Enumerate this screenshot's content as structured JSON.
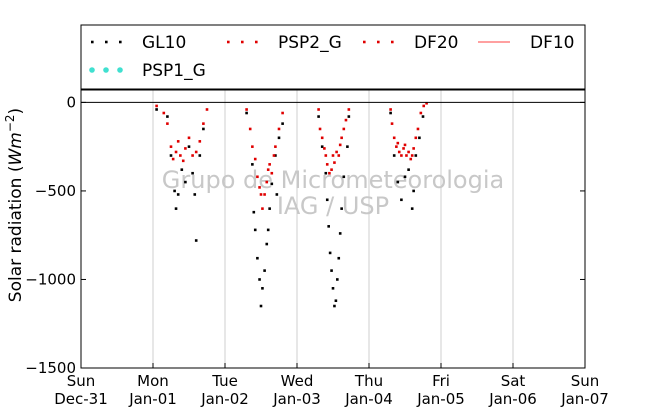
{
  "chart_data": {
    "type": "scatter",
    "ylabel": "Solar radiation",
    "ylabel_unit_base": "W",
    "ylabel_unit_sub": "m",
    "ylabel_unit_exp": "−2",
    "ylim": [
      -1500,
      70
    ],
    "yticks": [
      0,
      -500,
      -1000,
      -1500
    ],
    "ytick_labels": [
      "0",
      "−500",
      "−1000",
      "−1500"
    ],
    "xlim": [
      0,
      7
    ],
    "xticks": [
      {
        "pos": 0,
        "day": "Sun",
        "date": "Dec-31"
      },
      {
        "pos": 1,
        "day": "Mon",
        "date": "Jan-01"
      },
      {
        "pos": 2,
        "day": "Tue",
        "date": "Jan-02"
      },
      {
        "pos": 3,
        "day": "Wed",
        "date": "Jan-03"
      },
      {
        "pos": 4,
        "day": "Thu",
        "date": "Jan-04"
      },
      {
        "pos": 5,
        "day": "Fri",
        "date": "Jan-05"
      },
      {
        "pos": 6,
        "day": "Sat",
        "date": "Jan-06"
      },
      {
        "pos": 7,
        "day": "Sun",
        "date": "Jan-07"
      }
    ],
    "grid": "vertical",
    "zero_line": true,
    "legend_position": "top",
    "watermark": [
      "Grupo de Micrometeorologia",
      "IAG / USP"
    ],
    "series": [
      {
        "name": "GL10",
        "color": "#000000",
        "marker": "dot",
        "points": [
          [
            1.05,
            -40
          ],
          [
            1.2,
            -80
          ],
          [
            1.25,
            -300
          ],
          [
            1.3,
            -500
          ],
          [
            1.32,
            -600
          ],
          [
            1.35,
            -520
          ],
          [
            1.4,
            -380
          ],
          [
            1.45,
            -450
          ],
          [
            1.5,
            -250
          ],
          [
            1.55,
            -400
          ],
          [
            1.58,
            -520
          ],
          [
            1.6,
            -780
          ],
          [
            1.65,
            -300
          ],
          [
            1.7,
            -150
          ],
          [
            2.3,
            -60
          ],
          [
            2.38,
            -350
          ],
          [
            2.4,
            -620
          ],
          [
            2.42,
            -720
          ],
          [
            2.45,
            -880
          ],
          [
            2.48,
            -1000
          ],
          [
            2.5,
            -1150
          ],
          [
            2.52,
            -1050
          ],
          [
            2.55,
            -950
          ],
          [
            2.58,
            -800
          ],
          [
            2.6,
            -720
          ],
          [
            2.62,
            -600
          ],
          [
            2.65,
            -460
          ],
          [
            2.7,
            -300
          ],
          [
            2.72,
            -520
          ],
          [
            2.75,
            -200
          ],
          [
            2.8,
            -120
          ],
          [
            3.3,
            -80
          ],
          [
            3.35,
            -250
          ],
          [
            3.4,
            -400
          ],
          [
            3.42,
            -550
          ],
          [
            3.44,
            -700
          ],
          [
            3.46,
            -850
          ],
          [
            3.48,
            -950
          ],
          [
            3.5,
            -1050
          ],
          [
            3.52,
            -1150
          ],
          [
            3.54,
            -1120
          ],
          [
            3.56,
            -1000
          ],
          [
            3.58,
            -880
          ],
          [
            3.6,
            -740
          ],
          [
            3.62,
            -600
          ],
          [
            3.65,
            -420
          ],
          [
            3.7,
            -250
          ],
          [
            3.72,
            -80
          ],
          [
            4.3,
            -60
          ],
          [
            4.35,
            -300
          ],
          [
            4.4,
            -450
          ],
          [
            4.45,
            -550
          ],
          [
            4.5,
            -420
          ],
          [
            4.55,
            -380
          ],
          [
            4.6,
            -600
          ],
          [
            4.62,
            -500
          ],
          [
            4.65,
            -300
          ],
          [
            4.7,
            -200
          ],
          [
            4.75,
            -80
          ]
        ]
      },
      {
        "name": "PSP2_G",
        "color": "#e00000",
        "marker": "dot",
        "points": [
          [
            1.05,
            -20
          ],
          [
            1.15,
            -60
          ],
          [
            1.2,
            -120
          ],
          [
            1.25,
            -250
          ],
          [
            1.28,
            -320
          ],
          [
            1.32,
            -280
          ],
          [
            1.35,
            -220
          ],
          [
            1.38,
            -300
          ],
          [
            1.42,
            -330
          ],
          [
            1.45,
            -260
          ],
          [
            1.5,
            -200
          ],
          [
            1.55,
            -300
          ],
          [
            1.6,
            -280
          ],
          [
            1.65,
            -220
          ],
          [
            1.7,
            -120
          ],
          [
            1.75,
            -40
          ],
          [
            2.3,
            -40
          ],
          [
            2.35,
            -150
          ],
          [
            2.38,
            -250
          ],
          [
            2.42,
            -320
          ],
          [
            2.45,
            -420
          ],
          [
            2.48,
            -480
          ],
          [
            2.5,
            -520
          ],
          [
            2.52,
            -600
          ],
          [
            2.55,
            -520
          ],
          [
            2.58,
            -450
          ],
          [
            2.6,
            -380
          ],
          [
            2.62,
            -350
          ],
          [
            2.65,
            -400
          ],
          [
            2.68,
            -300
          ],
          [
            2.7,
            -250
          ],
          [
            2.75,
            -150
          ],
          [
            2.8,
            -60
          ],
          [
            3.3,
            -40
          ],
          [
            3.32,
            -150
          ],
          [
            3.35,
            -200
          ],
          [
            3.38,
            -260
          ],
          [
            3.4,
            -300
          ],
          [
            3.42,
            -350
          ],
          [
            3.45,
            -400
          ],
          [
            3.48,
            -380
          ],
          [
            3.5,
            -300
          ],
          [
            3.52,
            -340
          ],
          [
            3.55,
            -280
          ],
          [
            3.58,
            -300
          ],
          [
            3.6,
            -240
          ],
          [
            3.62,
            -200
          ],
          [
            3.65,
            -150
          ],
          [
            3.68,
            -100
          ],
          [
            3.72,
            -40
          ],
          [
            4.3,
            -40
          ],
          [
            4.32,
            -120
          ],
          [
            4.35,
            -200
          ],
          [
            4.38,
            -250
          ],
          [
            4.4,
            -230
          ],
          [
            4.42,
            -280
          ],
          [
            4.45,
            -300
          ],
          [
            4.48,
            -260
          ],
          [
            4.5,
            -240
          ],
          [
            4.52,
            -300
          ],
          [
            4.55,
            -280
          ],
          [
            4.58,
            -320
          ],
          [
            4.6,
            -300
          ],
          [
            4.62,
            -260
          ],
          [
            4.65,
            -200
          ],
          [
            4.68,
            -150
          ],
          [
            4.72,
            -60
          ],
          [
            4.76,
            -20
          ],
          [
            4.8,
            -5
          ]
        ]
      },
      {
        "name": "DF20",
        "color": "#e00000",
        "marker": "dot",
        "points": []
      },
      {
        "name": "DF10",
        "color": "#ff8080",
        "marker": "line",
        "points": []
      },
      {
        "name": "PSP1_G",
        "color": "#40e0d0",
        "marker": "dot",
        "points": []
      }
    ]
  }
}
